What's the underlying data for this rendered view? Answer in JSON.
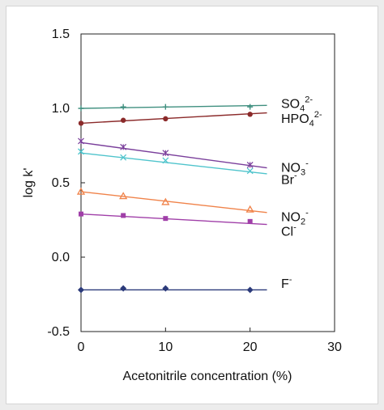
{
  "chart_data": {
    "type": "line",
    "title": "",
    "xlabel": "Acetonitrile concentration (%)",
    "ylabel": "log k'",
    "xlim": [
      0,
      30
    ],
    "ylim": [
      -0.5,
      1.5
    ],
    "xticks": [
      "0",
      "10",
      "20",
      "30"
    ],
    "yticks": [
      "-0.5",
      "0.0",
      "0.5",
      "1.0",
      "1.5"
    ],
    "grid": false,
    "legend": "inline-right",
    "x": [
      0,
      5,
      10,
      20
    ],
    "series": [
      {
        "name": "SO4 2-",
        "label_main": "SO",
        "label_sub": "4",
        "label_sup": "2-",
        "color": "#3f8f7f",
        "marker": "plus",
        "values": [
          1.0,
          1.01,
          1.01,
          1.01
        ],
        "fit": [
          1.0,
          1.02
        ]
      },
      {
        "name": "HPO4 2-",
        "label_main": "HPO",
        "label_sub": "4",
        "label_sup": "2-",
        "color": "#8b2a2a",
        "marker": "circle",
        "values": [
          0.9,
          0.92,
          0.93,
          0.96
        ],
        "fit": [
          0.9,
          0.97
        ]
      },
      {
        "name": "NO3-",
        "label_main": "NO",
        "label_sub": "3",
        "label_sup": "-",
        "color": "#7a3f9b",
        "marker": "star",
        "values": [
          0.78,
          0.74,
          0.7,
          0.62
        ],
        "fit": [
          0.77,
          0.6
        ]
      },
      {
        "name": "Br-",
        "label_main": "Br",
        "label_sub": "",
        "label_sup": "-",
        "color": "#4fc4cc",
        "marker": "x",
        "values": [
          0.71,
          0.67,
          0.65,
          0.58
        ],
        "fit": [
          0.7,
          0.56
        ]
      },
      {
        "name": "NO2-",
        "label_main": "NO",
        "label_sub": "2",
        "label_sup": "-",
        "color": "#f0834a",
        "marker": "triangle",
        "values": [
          0.44,
          0.41,
          0.37,
          0.32
        ],
        "fit": [
          0.44,
          0.3
        ]
      },
      {
        "name": "Cl-",
        "label_main": "Cl",
        "label_sub": "",
        "label_sup": "-",
        "color": "#a03fa8",
        "marker": "square",
        "values": [
          0.29,
          0.28,
          0.26,
          0.24
        ],
        "fit": [
          0.29,
          0.22
        ]
      },
      {
        "name": "F-",
        "label_main": "F",
        "label_sub": "",
        "label_sup": "-",
        "color": "#2b3a7a",
        "marker": "diamond",
        "values": [
          -0.22,
          -0.21,
          -0.21,
          -0.22
        ],
        "fit": [
          -0.22,
          -0.22
        ]
      }
    ],
    "fit_x": [
      0,
      22
    ]
  }
}
